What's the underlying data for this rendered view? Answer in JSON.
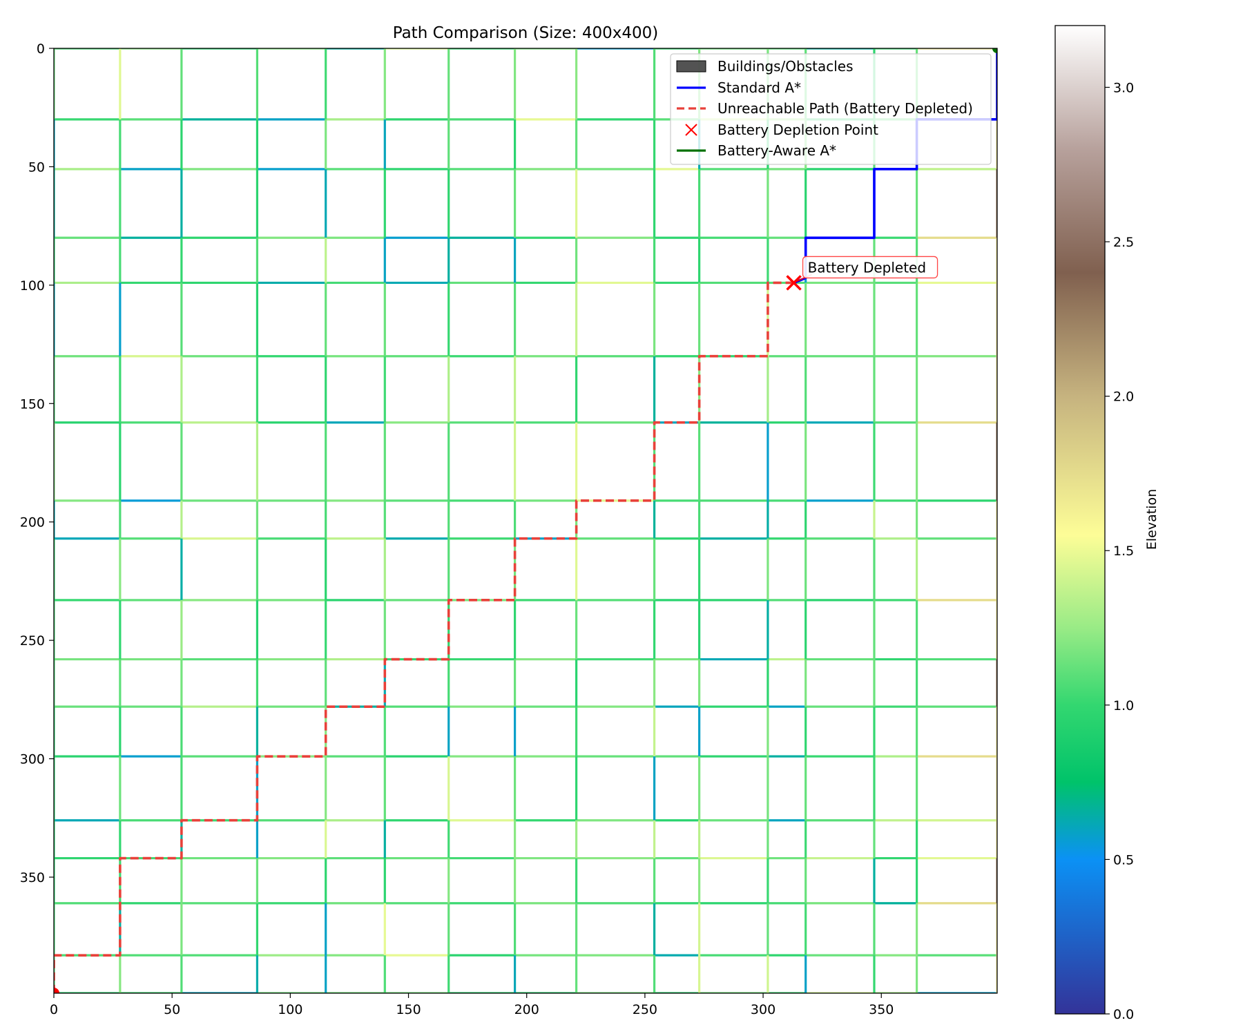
{
  "chart_data": {
    "type": "line",
    "title": "Path Comparison (Size: 400x400)",
    "xlabel": "",
    "ylabel": "",
    "xlim": [
      0,
      399
    ],
    "ylim": [
      399,
      0
    ],
    "y_inverted": true,
    "x_ticks": [
      0,
      50,
      100,
      150,
      200,
      250,
      300,
      350
    ],
    "y_ticks": [
      0,
      50,
      100,
      150,
      200,
      250,
      300,
      350
    ],
    "grid": false,
    "legend_position": "top-right",
    "background": {
      "type": "heatmap",
      "description_key": "road-grid elevation map",
      "road_columns": [
        0,
        28,
        54,
        86,
        115,
        140,
        167,
        195,
        221,
        254,
        273,
        302,
        318,
        347,
        365,
        399
      ],
      "road_rows": [
        0,
        30,
        51,
        80,
        99,
        130,
        158,
        191,
        207,
        233,
        258,
        278,
        299,
        326,
        342,
        361,
        383,
        399
      ],
      "colormap": "terrain"
    },
    "colorbar": {
      "label": "Elevation",
      "min": 0.0,
      "max": 3.2,
      "ticks": [
        0.0,
        0.5,
        1.0,
        1.5,
        2.0,
        2.5,
        3.0
      ],
      "tick_labels": [
        "0.0",
        "0.5",
        "1.0",
        "1.5",
        "2.0",
        "2.5",
        "3.0"
      ],
      "stops": [
        {
          "v": 0.0,
          "c": "#333399"
        },
        {
          "v": 0.5,
          "c": "#0b91f5"
        },
        {
          "v": 0.75,
          "c": "#00c36a"
        },
        {
          "v": 1.0,
          "c": "#33d770"
        },
        {
          "v": 1.25,
          "c": "#99eb86"
        },
        {
          "v": 1.55,
          "c": "#fdfd97"
        },
        {
          "v": 2.0,
          "c": "#c6b37f"
        },
        {
          "v": 2.4,
          "c": "#80604f"
        },
        {
          "v": 2.8,
          "c": "#b7a19c"
        },
        {
          "v": 3.2,
          "c": "#ffffff"
        }
      ]
    },
    "series": [
      {
        "name": "Buildings/Obstacles",
        "kind": "patch",
        "color": "#404040"
      },
      {
        "name": "Standard A*",
        "kind": "line",
        "color": "#0000ff",
        "x": [
          399,
          399,
          365,
          365,
          347,
          347,
          318,
          318,
          313
        ],
        "y": [
          0,
          30,
          30,
          51,
          51,
          80,
          80,
          97,
          99
        ]
      },
      {
        "name": "Unreachable Path (Battery Depleted)",
        "kind": "dashed-line",
        "color": "#e8413a",
        "x": [
          313,
          302,
          302,
          273,
          273,
          254,
          254,
          221,
          221,
          195,
          195,
          167,
          167,
          140,
          140,
          115,
          115,
          86,
          86,
          54,
          54,
          28,
          28,
          0,
          0
        ],
        "y": [
          99,
          99,
          130,
          130,
          158,
          158,
          191,
          191,
          207,
          207,
          233,
          233,
          258,
          258,
          278,
          278,
          299,
          299,
          326,
          326,
          342,
          342,
          383,
          383,
          399
        ]
      },
      {
        "name": "Battery Depletion Point",
        "kind": "marker-x",
        "color": "#ff0000",
        "x": [
          313
        ],
        "y": [
          99
        ]
      },
      {
        "name": "Battery-Aware A*",
        "kind": "line",
        "color": "#007000",
        "x": [],
        "y": []
      }
    ],
    "points": {
      "start": {
        "x": 0,
        "y": 399,
        "color": "#ff0000"
      },
      "goal": {
        "x": 399,
        "y": 0,
        "color": "#007000"
      }
    },
    "annotation": {
      "text": "Battery Depleted",
      "x": 313,
      "y": 99
    }
  }
}
